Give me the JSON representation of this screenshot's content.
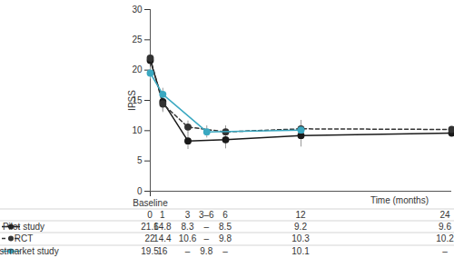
{
  "chart_data": {
    "type": "line",
    "ylabel": "IPSS",
    "xlabel": "Time (months)",
    "x": [
      0,
      1,
      3,
      4.5,
      6,
      12,
      24
    ],
    "x_labels": [
      "0",
      "1",
      "3",
      "3–6",
      "6",
      "12",
      "24"
    ],
    "missing_label": "–",
    "xlim": [
      0,
      24
    ],
    "xticks": [
      {
        "value": 0,
        "label": "Baseline"
      }
    ],
    "ylim": [
      0,
      30
    ],
    "yticks": [
      0,
      5,
      10,
      15,
      20,
      25,
      30
    ],
    "grid": false,
    "series": [
      {
        "name": "Pilot study",
        "color": "#1a1a1a",
        "marker": "circle",
        "line_style": "solid",
        "values": [
          21.6,
          14.8,
          8.3,
          null,
          8.5,
          9.2,
          9.6
        ],
        "errors": [
          0.7,
          1.6,
          1.4,
          null,
          1.5,
          1.9,
          1.8
        ]
      },
      {
        "name": "RCT",
        "color": "#333333",
        "marker": "circle",
        "line_style": "dashed",
        "values": [
          22,
          14.4,
          10.6,
          null,
          9.8,
          10.3,
          10.2
        ],
        "errors": [
          0.5,
          1.4,
          1.0,
          null,
          1.0,
          1.4,
          1.0
        ]
      },
      {
        "name": "Postmarket study",
        "color": "#3aa8c1",
        "marker": "circle",
        "line_style": "solid",
        "values": [
          19.5,
          16,
          null,
          9.8,
          null,
          10.1,
          null
        ],
        "errors": [
          1.0,
          1.0,
          null,
          1.0,
          null,
          1.2,
          null
        ]
      }
    ]
  }
}
